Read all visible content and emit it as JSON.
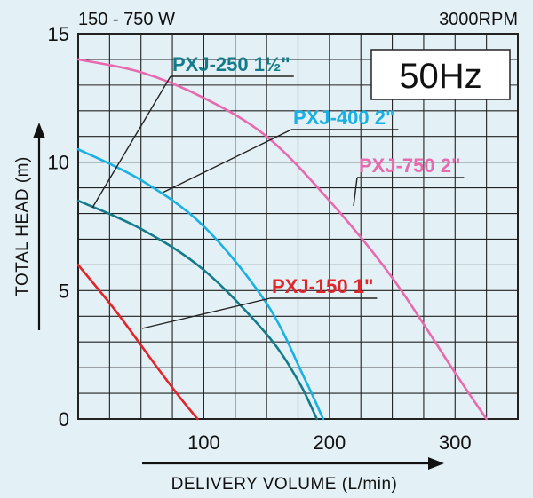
{
  "header": {
    "power_range": "150 - 750 W",
    "speed": "3000RPM"
  },
  "badge": {
    "label": "50Hz"
  },
  "chart_data": {
    "type": "line",
    "title": "",
    "xlabel": "DELIVERY VOLUME (L/min)",
    "ylabel": "TOTAL HEAD (m)",
    "xlim": [
      0,
      350
    ],
    "ylim": [
      0,
      15
    ],
    "x_ticks": [
      100,
      200,
      300
    ],
    "x_tick_labels": [
      "100",
      "200",
      "300"
    ],
    "y_ticks": [
      0,
      5,
      10,
      15
    ],
    "y_tick_labels": [
      "0",
      "5",
      "10",
      "15"
    ],
    "grid": true,
    "series": [
      {
        "name": "PXJ-750 2\"",
        "color": "#e86aae",
        "x": [
          0,
          50,
          100,
          150,
          200,
          250,
          300,
          325
        ],
        "y": [
          14.0,
          13.5,
          12.5,
          11.0,
          8.5,
          5.5,
          1.8,
          0
        ]
      },
      {
        "name": "PXJ-400 2\"",
        "color": "#1ab0e4",
        "x": [
          0,
          50,
          100,
          150,
          180,
          195
        ],
        "y": [
          10.5,
          9.3,
          7.5,
          4.5,
          1.6,
          0
        ]
      },
      {
        "name": "PXJ-250 1½\"",
        "color": "#147b8a",
        "x": [
          0,
          50,
          100,
          150,
          175,
          190
        ],
        "y": [
          8.5,
          7.4,
          5.8,
          3.3,
          1.5,
          0
        ]
      },
      {
        "name": "PXJ-150 1\"",
        "color": "#e0262b",
        "x": [
          0,
          30,
          60,
          80,
          95
        ],
        "y": [
          6.0,
          4.2,
          2.2,
          0.9,
          0
        ]
      }
    ]
  }
}
